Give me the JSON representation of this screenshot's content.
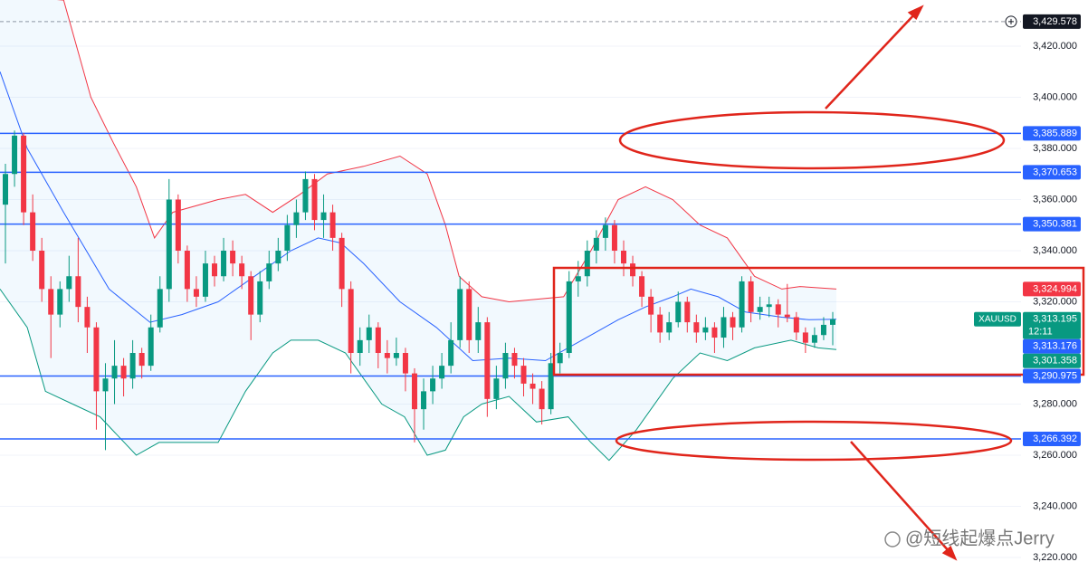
{
  "chart_data": {
    "type": "candlestick",
    "symbol": "XAUUSD",
    "countdown": "12:11",
    "ylim": [
      3212.57,
      3438.05
    ],
    "yticks": [
      {
        "value": 3420,
        "label": "3,420.000"
      },
      {
        "value": 3400,
        "label": "3,400.000"
      },
      {
        "value": 3380,
        "label": "3,380.000"
      },
      {
        "value": 3360,
        "label": "3,360.000"
      },
      {
        "value": 3340,
        "label": "3,340.000"
      },
      {
        "value": 3320,
        "label": "3,320.000"
      },
      {
        "value": 3280,
        "label": "3,280.000"
      },
      {
        "value": 3260,
        "label": "3,260.000"
      },
      {
        "value": 3240,
        "label": "3,240.000"
      },
      {
        "value": 3220,
        "label": "3,220.000"
      }
    ],
    "grid": true,
    "candles": {
      "up_color": "#089981",
      "down_color": "#f23645",
      "values": [
        [
          3358,
          3374,
          3335,
          3370
        ],
        [
          3370,
          3387,
          3365,
          3385
        ],
        [
          3385,
          3386,
          3350,
          3355
        ],
        [
          3355,
          3362,
          3336,
          3340
        ],
        [
          3340,
          3345,
          3320,
          3325
        ],
        [
          3325,
          3330,
          3298,
          3315
        ],
        [
          3315,
          3328,
          3310,
          3325
        ],
        [
          3325,
          3338,
          3320,
          3330
        ],
        [
          3330,
          3345,
          3312,
          3318
        ],
        [
          3318,
          3322,
          3300,
          3310
        ],
        [
          3310,
          3312,
          3270,
          3285
        ],
        [
          3285,
          3296,
          3262,
          3290
        ],
        [
          3290,
          3305,
          3280,
          3295
        ],
        [
          3295,
          3298,
          3283,
          3290
        ],
        [
          3290,
          3305,
          3286,
          3300
        ],
        [
          3300,
          3302,
          3290,
          3295
        ],
        [
          3295,
          3315,
          3293,
          3310
        ],
        [
          3310,
          3330,
          3308,
          3325
        ],
        [
          3325,
          3368,
          3320,
          3360
        ],
        [
          3360,
          3362,
          3335,
          3340
        ],
        [
          3340,
          3342,
          3320,
          3325
        ],
        [
          3325,
          3330,
          3318,
          3322
        ],
        [
          3322,
          3340,
          3320,
          3335
        ],
        [
          3335,
          3338,
          3326,
          3330
        ],
        [
          3330,
          3345,
          3328,
          3340
        ],
        [
          3340,
          3344,
          3330,
          3335
        ],
        [
          3335,
          3338,
          3325,
          3330
        ],
        [
          3330,
          3332,
          3305,
          3315
        ],
        [
          3315,
          3332,
          3312,
          3328
        ],
        [
          3328,
          3340,
          3325,
          3335
        ],
        [
          3335,
          3345,
          3332,
          3340
        ],
        [
          3340,
          3354,
          3336,
          3350
        ],
        [
          3350,
          3360,
          3345,
          3355
        ],
        [
          3355,
          3371,
          3352,
          3368
        ],
        [
          3368,
          3370,
          3348,
          3352
        ],
        [
          3352,
          3362,
          3345,
          3355
        ],
        [
          3355,
          3358,
          3340,
          3345
        ],
        [
          3345,
          3347,
          3318,
          3325
        ],
        [
          3325,
          3328,
          3292,
          3300
        ],
        [
          3300,
          3310,
          3295,
          3305
        ],
        [
          3305,
          3315,
          3300,
          3310
        ],
        [
          3310,
          3312,
          3294,
          3300
        ],
        [
          3300,
          3305,
          3292,
          3298
        ],
        [
          3298,
          3306,
          3295,
          3300
        ],
        [
          3300,
          3302,
          3285,
          3292
        ],
        [
          3292,
          3294,
          3265,
          3278
        ],
        [
          3278,
          3290,
          3270,
          3285
        ],
        [
          3285,
          3295,
          3280,
          3290
        ],
        [
          3290,
          3300,
          3286,
          3295
        ],
        [
          3295,
          3312,
          3292,
          3305
        ],
        [
          3305,
          3330,
          3302,
          3325
        ],
        [
          3325,
          3328,
          3300,
          3305
        ],
        [
          3305,
          3318,
          3300,
          3312
        ],
        [
          3312,
          3314,
          3275,
          3282
        ],
        [
          3282,
          3295,
          3278,
          3290
        ],
        [
          3290,
          3304,
          3286,
          3300
        ],
        [
          3300,
          3302,
          3290,
          3295
        ],
        [
          3295,
          3298,
          3283,
          3288
        ],
        [
          3288,
          3292,
          3280,
          3286
        ],
        [
          3286,
          3289,
          3272,
          3278
        ],
        [
          3278,
          3300,
          3276,
          3296
        ],
        [
          3296,
          3304,
          3292,
          3300
        ],
        [
          3300,
          3332,
          3298,
          3328
        ],
        [
          3328,
          3336,
          3322,
          3330
        ],
        [
          3330,
          3344,
          3326,
          3340
        ],
        [
          3340,
          3348,
          3335,
          3345
        ],
        [
          3345,
          3353,
          3340,
          3350
        ],
        [
          3350,
          3352,
          3335,
          3340
        ],
        [
          3340,
          3344,
          3330,
          3335
        ],
        [
          3335,
          3338,
          3326,
          3330
        ],
        [
          3330,
          3332,
          3318,
          3322
        ],
        [
          3322,
          3325,
          3308,
          3315
        ],
        [
          3315,
          3318,
          3304,
          3308
        ],
        [
          3308,
          3316,
          3305,
          3312
        ],
        [
          3312,
          3324,
          3310,
          3320
        ],
        [
          3320,
          3322,
          3308,
          3312
        ],
        [
          3312,
          3315,
          3304,
          3308
        ],
        [
          3308,
          3314,
          3305,
          3310
        ],
        [
          3310,
          3312,
          3300,
          3306
        ],
        [
          3306,
          3318,
          3302,
          3314
        ],
        [
          3314,
          3316,
          3305,
          3310
        ],
        [
          3310,
          3330,
          3308,
          3328
        ],
        [
          3328,
          3330,
          3312,
          3316
        ],
        [
          3316,
          3322,
          3313,
          3318
        ],
        [
          3318,
          3322,
          3314,
          3319
        ],
        [
          3319,
          3321,
          3310,
          3315
        ],
        [
          3315,
          3327,
          3312,
          3314
        ],
        [
          3314,
          3316,
          3305,
          3308
        ],
        [
          3308,
          3310,
          3300,
          3304
        ],
        [
          3304,
          3310,
          3302,
          3307
        ],
        [
          3307,
          3314,
          3305,
          3311
        ],
        [
          3311,
          3316,
          3303,
          3313.195
        ]
      ]
    },
    "bands": [
      {
        "color": "#f23645",
        "x": [
          -0.6,
          6.4,
          9.4,
          11.9,
          14.4,
          16.4,
          18.4,
          23.4,
          26.4,
          29.4,
          32.4,
          35.4,
          39.4,
          43.4,
          46.4,
          48.4,
          49.9,
          52.4,
          55.4,
          61.4,
          64.4,
          67.4,
          70.4,
          73.4,
          76.4,
          79.4,
          82.4,
          85.4,
          87.4,
          91.4
        ],
        "values": [
          3440,
          3438,
          3400,
          3382,
          3365,
          3345,
          3355,
          3360,
          3362,
          3355,
          3362,
          3370,
          3373,
          3377,
          3370,
          3350,
          3330,
          3322,
          3320,
          3322,
          3340,
          3360,
          3365,
          3360,
          3350,
          3345,
          3330,
          3325,
          3326,
          3324.994
        ],
        "last": {
          "value": 3324.994,
          "label": "3,324.994"
        }
      },
      {
        "color": "#2962ff",
        "x": [
          -0.6,
          2.4,
          6.4,
          11.4,
          15.9,
          19.4,
          23.4,
          27.4,
          31.4,
          34.4,
          36.9,
          39.4,
          43.4,
          47.4,
          51.4,
          55.4,
          59.4,
          63.4,
          67.4,
          70.4,
          73.4,
          75.4,
          78.4,
          81.4,
          85.4,
          88.4,
          91.4
        ],
        "values": [
          3410,
          3380,
          3355,
          3325,
          3312,
          3315,
          3320,
          3330,
          3340,
          3345,
          3343,
          3335,
          3320,
          3310,
          3297,
          3298,
          3297,
          3305,
          3313,
          3318,
          3322,
          3325,
          3322,
          3316,
          3314,
          3313,
          3313.176
        ],
        "last": {
          "value": 3313.176,
          "label": "3,313.176"
        }
      },
      {
        "color": "#089981",
        "x": [
          -0.6,
          2.4,
          4.4,
          7.4,
          10.4,
          14.4,
          16.9,
          19.4,
          23.4,
          26.4,
          29.4,
          31.4,
          34.4,
          37.4,
          39.4,
          41.4,
          43.9,
          46.4,
          48.4,
          50.4,
          52.4,
          55.4,
          58.4,
          61.9,
          64.4,
          66.4,
          69.4,
          73.4,
          76.4,
          79.4,
          82.4,
          86.4,
          89.4,
          91.4
        ],
        "values": [
          3325,
          3310,
          3285,
          3280,
          3275,
          3260,
          3265,
          3265,
          3265,
          3285,
          3300,
          3305,
          3305,
          3300,
          3290,
          3280,
          3275,
          3260,
          3262,
          3275,
          3280,
          3283,
          3273,
          3275,
          3265,
          3258,
          3270,
          3290,
          3300,
          3297,
          3302,
          3305,
          3302,
          3301.358
        ],
        "last": {
          "value": 3301.358,
          "label": "3,301.358"
        }
      }
    ],
    "band_fill": "rgba(33,150,243,0.06)",
    "line_color": "#2962ff",
    "price_lines": [
      {
        "value": 3385.889,
        "label": "3,385.889"
      },
      {
        "value": 3370.653,
        "label": "3,370.653"
      },
      {
        "value": 3350.381,
        "label": "3,350.381"
      },
      {
        "value": 3290.975,
        "label": "3,290.975"
      },
      {
        "value": 3266.392,
        "label": "3,266.392"
      }
    ],
    "last_price": {
      "value": 3313.195,
      "label": "3,313.195"
    },
    "high_marker": {
      "value": 3429.578,
      "label": "3,429.578"
    },
    "watermark": "@短线起爆点Jerry"
  }
}
